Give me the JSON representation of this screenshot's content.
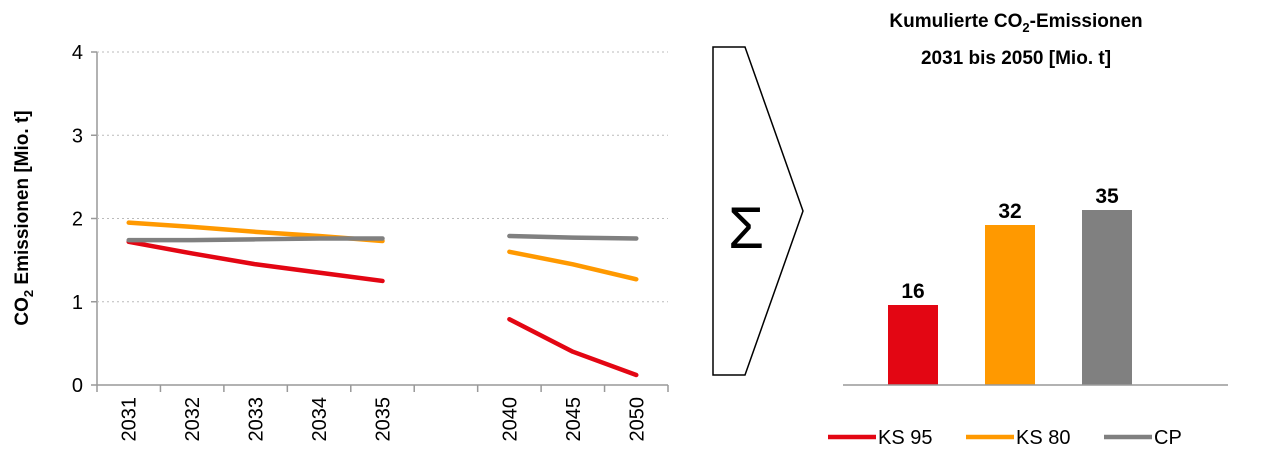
{
  "chart_data": [
    {
      "type": "line",
      "ylabel_main": "CO",
      "ylabel_sub": "2",
      "ylabel_rest": " Emissionen [Mio. t]",
      "ylim": [
        0,
        4
      ],
      "yticks": [
        "0",
        "1",
        "2",
        "3",
        "4"
      ],
      "grid": true,
      "categories": [
        "2031",
        "2032",
        "2033",
        "2034",
        "2035",
        "",
        "2040",
        "2045",
        "2050"
      ],
      "series": [
        {
          "name": "KS 95",
          "color": "#e30613",
          "values": [
            1.72,
            1.58,
            1.45,
            1.35,
            1.25,
            null,
            0.79,
            0.4,
            0.12
          ]
        },
        {
          "name": "KS 80",
          "color": "#ff9900",
          "values": [
            1.95,
            1.9,
            1.84,
            1.79,
            1.73,
            null,
            1.6,
            1.45,
            1.27
          ]
        },
        {
          "name": "CP",
          "color": "#808080",
          "values": [
            1.74,
            1.74,
            1.75,
            1.76,
            1.76,
            null,
            1.79,
            1.77,
            1.76
          ]
        }
      ]
    },
    {
      "type": "bar",
      "title_line1_a": "Kumulierte CO",
      "title_line1_sub": "2",
      "title_line1_b": "-Emissionen",
      "title_line2": "2031 bis 2050 [Mio. t]",
      "categories": [
        "KS 95",
        "KS 80",
        "CP"
      ],
      "values": [
        16,
        32,
        35
      ],
      "value_labels": [
        "16",
        "32",
        "35"
      ],
      "colors": [
        "#e30613",
        "#ff9900",
        "#808080"
      ],
      "legend_position": "bottom"
    }
  ],
  "sum_symbol": "Σ",
  "legend": [
    {
      "label": "KS 95",
      "color": "#e30613"
    },
    {
      "label": "KS 80",
      "color": "#ff9900"
    },
    {
      "label": "CP",
      "color": "#808080"
    }
  ]
}
